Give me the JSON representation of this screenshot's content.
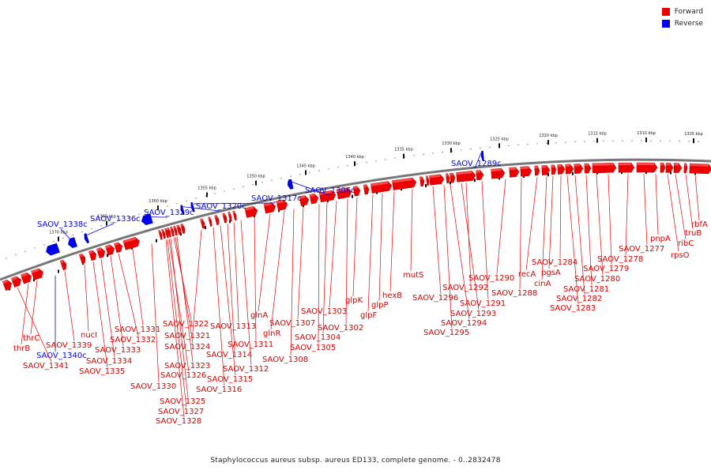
{
  "legend": [
    {
      "label": "Forward",
      "color": "#ee0000"
    },
    {
      "label": "Reverse",
      "color": "#0000ee"
    }
  ],
  "caption": "Staphylococcus aureus subsp. aureus ED133, complete genome. - 0..2832478",
  "colors": {
    "forward": "#ee0000",
    "reverse": "#0000ee",
    "backbone": "#777777"
  },
  "ticks": [
    "1305 kbp",
    "1310 kbp",
    "1315 kbp",
    "1320 kbp",
    "1325 kbp",
    "1330 kbp",
    "1335 kbp",
    "1340 kbp",
    "1345 kbp",
    "1350 kbp",
    "1355 kbp",
    "1360 kbp",
    "1365 kbp",
    "1370 kbp"
  ],
  "reverse_labels": [
    "SAOV_1289c",
    "SAOV_1306c",
    "SAOV_1317c",
    "SAOV_1320c",
    "SAOV_1329c",
    "SAOV_1336c",
    "SAOV_1338c",
    "SAOV_1340c"
  ],
  "forward_labels": [
    "rbfA",
    "truB",
    "ribC",
    "rpsO",
    "pnpA",
    "SAOV_1277",
    "SAOV_1278",
    "SAOV_1279",
    "SAOV_1280",
    "SAOV_1281",
    "SAOV_1282",
    "SAOV_1283",
    "SAOV_1284",
    "pgsA",
    "cinA",
    "recA",
    "SAOV_1288",
    "SAOV_1290",
    "SAOV_1291",
    "SAOV_1292",
    "SAOV_1293",
    "SAOV_1294",
    "SAOV_1295",
    "SAOV_1296",
    "mutS",
    "hexB",
    "glpP",
    "glpF",
    "glpK",
    "SAOV_1302",
    "SAOV_1303",
    "SAOV_1304",
    "SAOV_1305",
    "SAOV_1307",
    "SAOV_1308",
    "glnR",
    "glnA",
    "SAOV_1311",
    "SAOV_1312",
    "SAOV_1313",
    "SAOV_1314",
    "SAOV_1315",
    "SAOV_1316",
    "SAOV_1321",
    "SAOV_1322",
    "SAOV_1323",
    "SAOV_1324",
    "SAOV_1325",
    "SAOV_1326",
    "SAOV_1327",
    "SAOV_1328",
    "SAOV_1330",
    "SAOV_1331",
    "SAOV_1332",
    "SAOV_1333",
    "SAOV_1334",
    "SAOV_1335",
    "nucI",
    "SAOV_1339",
    "thrC",
    "thrB",
    "SAOV_1341"
  ]
}
